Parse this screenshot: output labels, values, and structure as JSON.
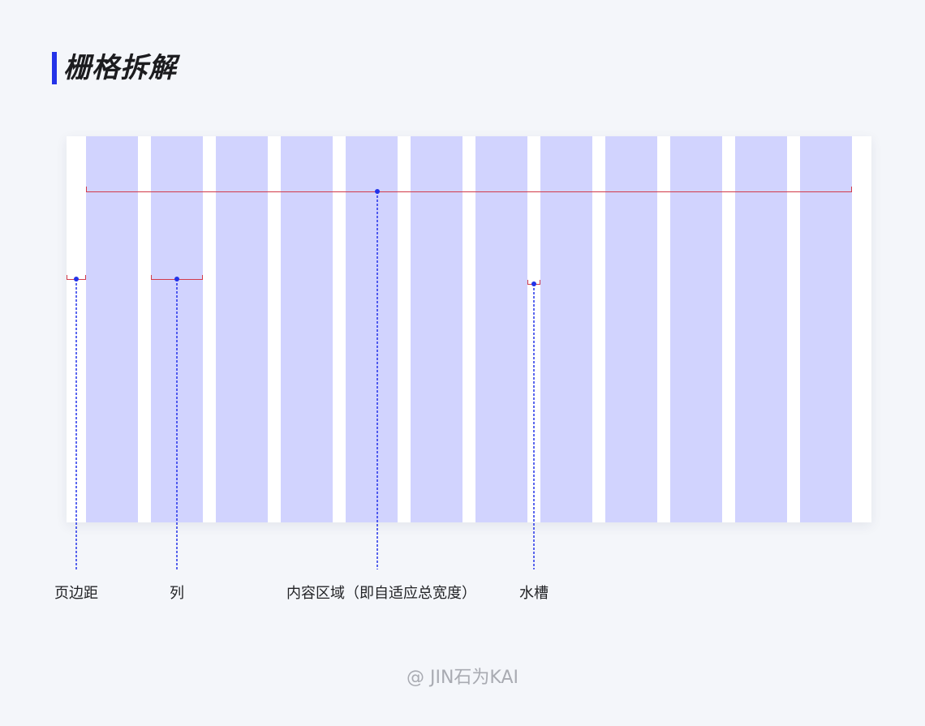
{
  "title": "栅格拆解",
  "grid": {
    "columns": 12,
    "column_color": "#d1d3fe",
    "canvas_color": "#ffffff"
  },
  "labels": {
    "margin": "页边距",
    "column": "列",
    "content": "内容区域（即自适应总宽度）",
    "gutter": "水槽"
  },
  "watermark": "@ JIN石为KAI",
  "colors": {
    "accent": "#2433e8",
    "measure_line": "#d23a4a",
    "leader_line": "#2433e8",
    "background": "#f4f6fa"
  }
}
